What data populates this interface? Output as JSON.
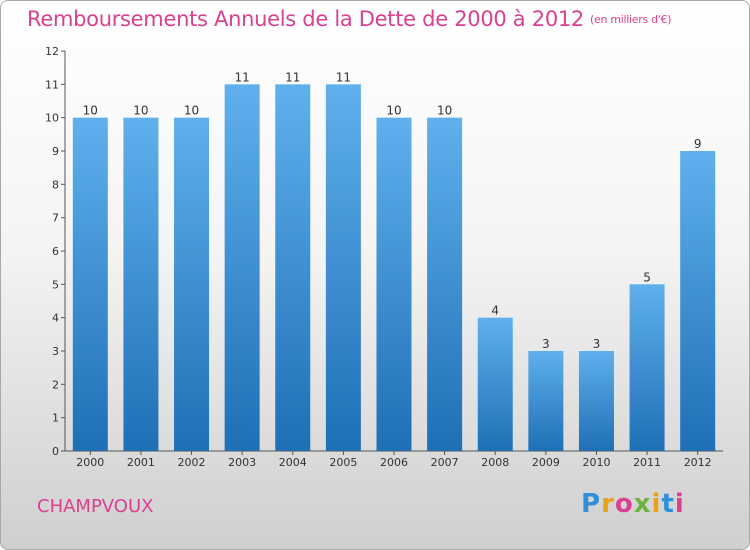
{
  "chart_data": {
    "type": "bar",
    "title": "Remboursements Annuels de la Dette de 2000 à 2012",
    "subtitle": "(en milliers d'€)",
    "categories": [
      "2000",
      "2001",
      "2002",
      "2003",
      "2004",
      "2005",
      "2006",
      "2007",
      "2008",
      "2009",
      "2010",
      "2011",
      "2012"
    ],
    "values": [
      10,
      10,
      10,
      11,
      11,
      11,
      10,
      10,
      4,
      3,
      3,
      5,
      9
    ],
    "yticks": [
      0,
      1,
      2,
      3,
      4,
      5,
      6,
      7,
      8,
      9,
      10,
      11,
      12
    ],
    "ylim": [
      0,
      12
    ],
    "grid": false,
    "bar_color": "#3a8fd6"
  },
  "commune": "CHAMPVOUX",
  "logo": {
    "text": "Proxiti"
  }
}
